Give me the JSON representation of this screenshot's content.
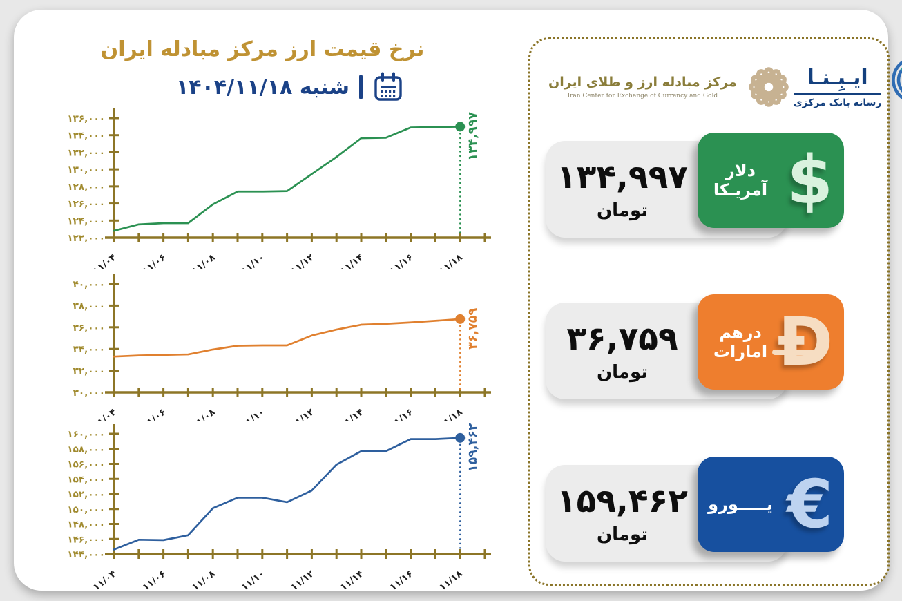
{
  "page": {
    "title": "نرخ قیمت ارز مرکز مبادله ایران",
    "weekday": "شنبه",
    "date": "۱۴۰۴/۱۱/۱۸",
    "accent_gold": "#bf9233",
    "accent_navy": "#1b4287"
  },
  "logos": {
    "ice": {
      "name_fa": "مرکز مبادله ارز و طلای ایران",
      "name_en": "Iran Center for Exchange of Currency and Gold"
    },
    "ibena": {
      "name_fa": "ایـبِـنـا",
      "tagline_fa": "رسانه بانک مرکزی"
    }
  },
  "cards": [
    {
      "name_fa": "دلار آمریـکا",
      "symbol": "$",
      "value_fa": "۱۳۴,۹۹۷",
      "value": 134997,
      "unit_fa": "تومان",
      "color": "#2b9152",
      "symbol_color": "#d9f2de"
    },
    {
      "name_fa": "درهم امارات",
      "symbol": "Ð",
      "value_fa": "۳۶,۷۵۹",
      "value": 36759,
      "unit_fa": "تومان",
      "color": "#ee7e2e",
      "symbol_color": "#f6ddc2"
    },
    {
      "name_fa": "یـــــورو",
      "symbol": "€",
      "value_fa": "۱۵۹,۴۶۲",
      "value": 159462,
      "unit_fa": "تومان",
      "color": "#17509f",
      "symbol_color": "#bdd3f0"
    }
  ],
  "chart_data": [
    {
      "id": "usd",
      "type": "line",
      "series_name_fa": "دلار آمریـکا",
      "color": "#2b9152",
      "x_days": [
        "11/04",
        "11/05",
        "11/06",
        "11/07",
        "11/08",
        "11/09",
        "11/10",
        "11/11",
        "11/12",
        "11/13",
        "11/14",
        "11/15",
        "11/16",
        "11/17",
        "11/18"
      ],
      "x_tick_labels": [
        "۱۱/۰۴",
        "۱۱/۰۶",
        "۱۱/۰۸",
        "۱۱/۱۰",
        "۱۱/۱۲",
        "۱۱/۱۴",
        "۱۱/۱۶",
        "۱۱/۱۸"
      ],
      "values": [
        122800,
        123550,
        123700,
        123700,
        125900,
        127400,
        127400,
        127450,
        129450,
        131450,
        133650,
        133700,
        134900,
        134950,
        134997
      ],
      "ylim": [
        122000,
        136000
      ],
      "ystep": 2000,
      "grid": false,
      "last_value": 134997,
      "last_value_fa": "۱۳۴,۹۹۷"
    },
    {
      "id": "aed",
      "type": "line",
      "series_name_fa": "درهم امارات",
      "color": "#e0802f",
      "x_days": [
        "11/04",
        "11/05",
        "11/06",
        "11/07",
        "11/08",
        "11/09",
        "11/10",
        "11/11",
        "11/12",
        "11/13",
        "11/14",
        "11/15",
        "11/16",
        "11/17",
        "11/18"
      ],
      "x_tick_labels": [
        "۱۱/۰۴",
        "۱۱/۰۶",
        "۱۱/۰۸",
        "۱۱/۱۰",
        "۱۱/۱۲",
        "۱۱/۱۴",
        "۱۱/۱۶",
        "۱۱/۱۸"
      ],
      "values": [
        33300,
        33400,
        33450,
        33500,
        33950,
        34300,
        34330,
        34330,
        35240,
        35790,
        36240,
        36320,
        36450,
        36600,
        36759
      ],
      "ylim": [
        30000,
        40000
      ],
      "ystep": 2000,
      "grid": false,
      "last_value": 36759,
      "last_value_fa": "۳۶,۷۵۹"
    },
    {
      "id": "eur",
      "type": "line",
      "series_name_fa": "یورو",
      "color": "#2e5f9e",
      "x_days": [
        "11/04",
        "11/05",
        "11/06",
        "11/07",
        "11/08",
        "11/09",
        "11/10",
        "11/11",
        "11/12",
        "11/13",
        "11/14",
        "11/15",
        "11/16",
        "11/17",
        "11/18"
      ],
      "x_tick_labels": [
        "۱۱/۰۴",
        "۱۱/۰۶",
        "۱۱/۰۸",
        "۱۱/۱۰",
        "۱۱/۱۲",
        "۱۱/۱۴",
        "۱۱/۱۶",
        "۱۱/۱۸"
      ],
      "values": [
        144600,
        145900,
        145850,
        146500,
        150100,
        151500,
        151500,
        150900,
        152450,
        155900,
        157700,
        157700,
        159300,
        159300,
        159462
      ],
      "ylim": [
        144000,
        160000
      ],
      "ystep": 2000,
      "grid": false,
      "last_value": 159462,
      "last_value_fa": "۱۵۹,۴۶۲"
    }
  ]
}
